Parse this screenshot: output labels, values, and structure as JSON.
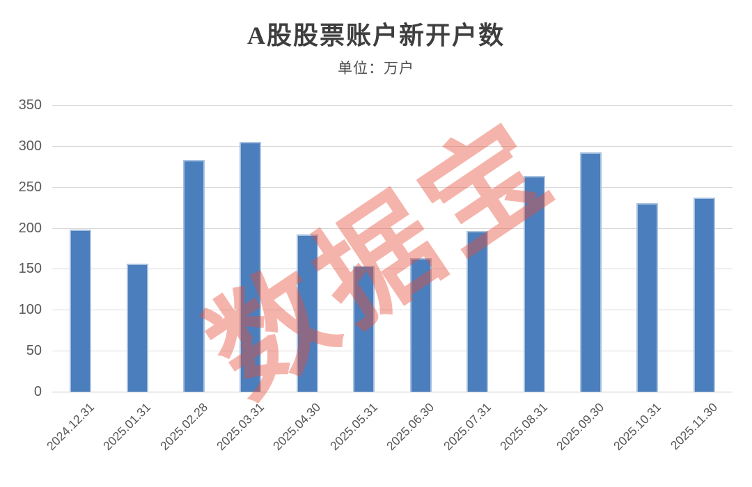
{
  "title": "A股股票账户新开户数",
  "subtitle": "单位：万户",
  "watermark": "数据宝",
  "colors": {
    "bar_fill": "#4B7EBC",
    "bar_edge": "#A9C2E0",
    "gridline": "#D9D9D9",
    "axis_text": "#595959",
    "title_text": "#3E3E3E",
    "watermark_red": "#E84C38"
  },
  "chart_data": {
    "type": "bar",
    "title": "A股股票账户新开户数",
    "subtitle": "单位：万户",
    "categories": [
      "2024.12.31",
      "2025.01.31",
      "2025.02.28",
      "2025.03.31",
      "2025.04.30",
      "2025.05.31",
      "2025.06.30",
      "2025.07.31",
      "2025.08.31",
      "2025.09.30",
      "2025.10.31",
      "2025.11.30"
    ],
    "values": [
      198,
      156,
      283,
      305,
      192,
      154,
      163,
      196,
      263,
      292,
      230,
      237
    ],
    "xlabel": "",
    "ylabel": "",
    "ylim": [
      0,
      350
    ],
    "ytick_step": 50,
    "yticks": [
      0,
      50,
      100,
      150,
      200,
      250,
      300,
      350
    ],
    "grid": true,
    "legend": false,
    "bar_color": "#4B7EBC",
    "x_label_rotation_deg": -45
  }
}
